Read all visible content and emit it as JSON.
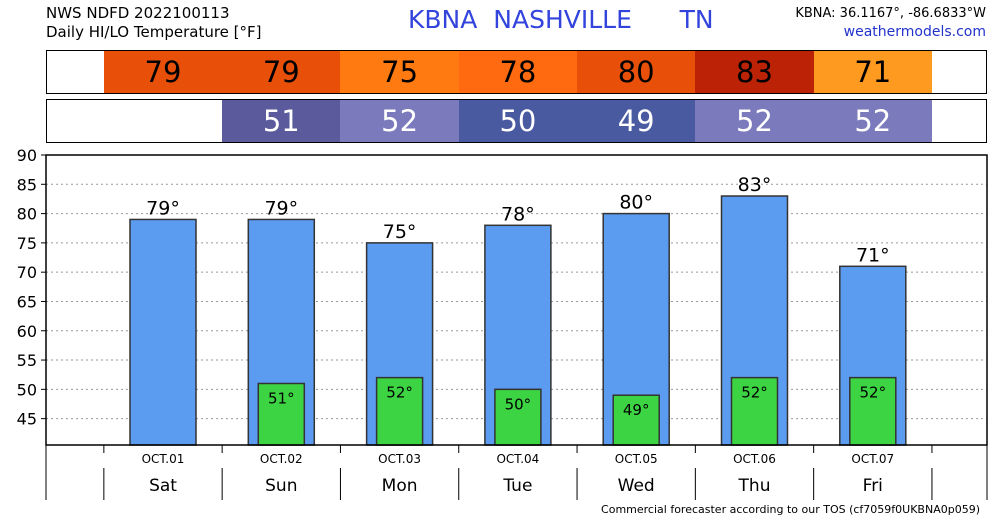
{
  "header": {
    "line1": "NWS NDFD 2022100113",
    "line2": "Daily HI/LO Temperature [°F]",
    "station": "KBNA",
    "city": "NASHVILLE",
    "state": "TN",
    "coords": "KBNA: 36.1167°, -86.6833°W",
    "site": "weathermodels.com"
  },
  "footer": "Commercial forecaster according to our TOS (cf7059f0UKBNA0p059)",
  "colors": {
    "hi_bar": "#5b9cf0",
    "lo_bar": "#3cd442",
    "hi_cells": [
      "#e8500a",
      "#e8500a",
      "#ff7a10",
      "#ff6a10",
      "#e8500a",
      "#bb2206",
      "#ff9a20"
    ],
    "lo_cells": [
      "#5a5a9c",
      "#7a7abc",
      "#4a5aa0",
      "#4a5aa0",
      "#7a7abc",
      "#7a7abc"
    ]
  },
  "chart_data": {
    "type": "bar",
    "categories": [
      "Sat",
      "Sun",
      "Mon",
      "Tue",
      "Wed",
      "Thu",
      "Fri"
    ],
    "dates": [
      "OCT.01",
      "OCT.02",
      "OCT.03",
      "OCT.04",
      "OCT.05",
      "OCT.06",
      "OCT.07"
    ],
    "series": [
      {
        "values": [
          79,
          79,
          75,
          78,
          80,
          83,
          71
        ],
        "labels": [
          "79°",
          "79°",
          "75°",
          "78°",
          "80°",
          "83°",
          "71°"
        ]
      },
      {
        "values": [
          null,
          51,
          52,
          50,
          49,
          52,
          52
        ],
        "labels": [
          "",
          "51°",
          "52°",
          "50°",
          "49°",
          "52°",
          "52°"
        ]
      }
    ],
    "hi_strip": [
      "79",
      "79",
      "75",
      "78",
      "80",
      "83",
      "71"
    ],
    "lo_strip": [
      "",
      "51",
      "52",
      "50",
      "49",
      "52",
      "52"
    ],
    "yticks": [
      "45",
      "50",
      "55",
      "60",
      "65",
      "70",
      "75",
      "80",
      "85",
      "90"
    ],
    "ylim": [
      40.5,
      90
    ],
    "grid": true
  }
}
